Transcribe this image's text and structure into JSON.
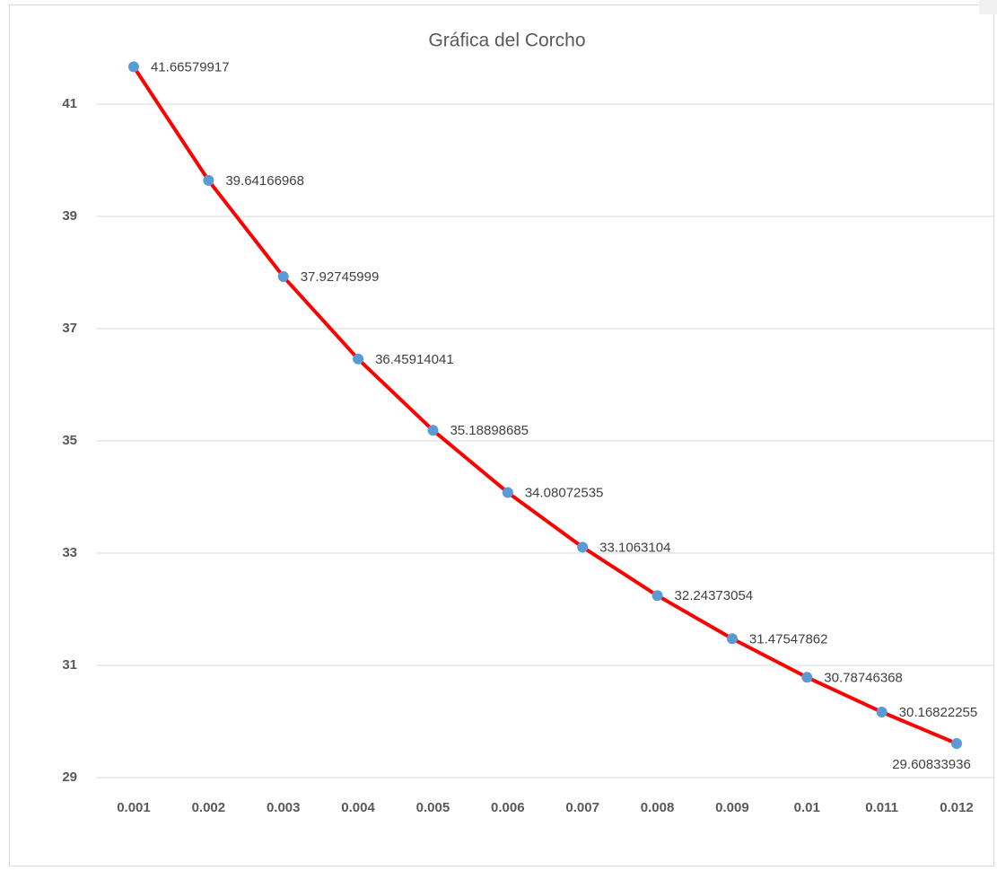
{
  "chart_data": {
    "type": "line",
    "title": "Gráfica del Corcho",
    "categories": [
      "0.001",
      "0.002",
      "0.003",
      "0.004",
      "0.005",
      "0.006",
      "0.007",
      "0.008",
      "0.009",
      "0.01",
      "0.011",
      "0.012"
    ],
    "series": [
      {
        "color": "#ff0000",
        "marker_color": "#5b9bd5",
        "values": [
          41.66579917,
          39.64166968,
          37.92745999,
          36.45914041,
          35.18898685,
          34.08072535,
          33.1063104,
          32.24373054,
          31.47547862,
          30.78746368,
          30.16822255,
          29.60833936
        ]
      }
    ],
    "ylim": [
      29,
      42
    ],
    "yticks": [
      29,
      31,
      33,
      35,
      37,
      39,
      41
    ],
    "grid": true,
    "data_labels": true
  }
}
